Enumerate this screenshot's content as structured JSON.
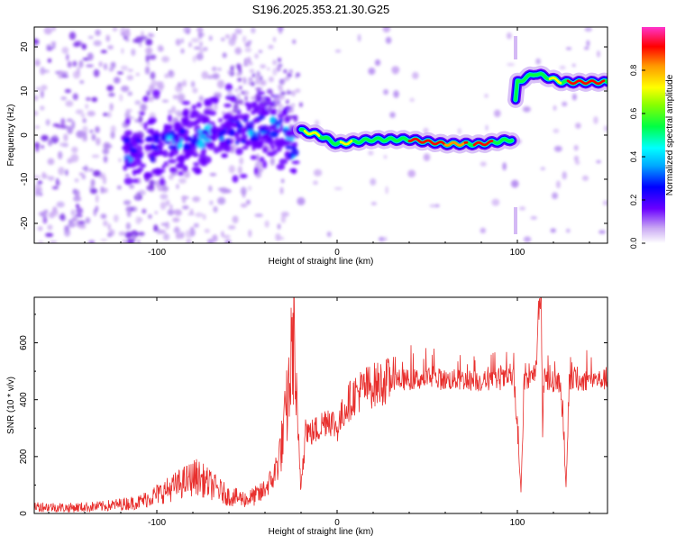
{
  "title": "S196.2025.353.21.30.G25",
  "chart_data": [
    {
      "type": "heatmap",
      "title": "S196.2025.353.21.30.G25",
      "xlabel": "Height of straight line (km)",
      "ylabel": "Frequency (Hz)",
      "xlim": [
        -168,
        150
      ],
      "ylim": [
        -24.5,
        24.5
      ],
      "xticks": [
        -100,
        0,
        100
      ],
      "yticks": [
        -20,
        -10,
        0,
        10,
        20
      ],
      "colorbar": {
        "label": "Normalized spectral amplitude",
        "range": [
          0,
          1
        ],
        "ticks": [
          0.0,
          0.2,
          0.4,
          0.6,
          0.8
        ]
      },
      "ridge": [
        {
          "x": -115,
          "y": -4
        },
        {
          "x": -100,
          "y": -3
        },
        {
          "x": -80,
          "y": -1
        },
        {
          "x": -60,
          "y": 1
        },
        {
          "x": -45,
          "y": 2
        },
        {
          "x": -30,
          "y": 1
        },
        {
          "x": -25,
          "y": -3
        },
        {
          "x": -20,
          "y": 1
        },
        {
          "x": -10,
          "y": 0
        },
        {
          "x": 0,
          "y": -2
        },
        {
          "x": 20,
          "y": -1
        },
        {
          "x": 40,
          "y": -1
        },
        {
          "x": 60,
          "y": -2
        },
        {
          "x": 80,
          "y": -2
        },
        {
          "x": 97,
          "y": -1
        },
        {
          "x": 100,
          "y": 12
        },
        {
          "x": 110,
          "y": 14
        },
        {
          "x": 125,
          "y": 12
        },
        {
          "x": 150,
          "y": 12
        }
      ]
    },
    {
      "type": "line",
      "xlabel": "Height of straight line (km)",
      "ylabel": "SNR (10 * v/v)",
      "xlim": [
        -168,
        150
      ],
      "ylim": [
        0,
        760
      ],
      "xticks": [
        -100,
        0,
        100
      ],
      "yticks": [
        0,
        200,
        400,
        600
      ],
      "series": [
        {
          "name": "SNR",
          "color": "#e8302e",
          "x": [
            -168,
            -150,
            -130,
            -110,
            -95,
            -85,
            -78,
            -70,
            -60,
            -50,
            -42,
            -35,
            -30,
            -27,
            -24,
            -22,
            -20,
            -18,
            -15,
            -10,
            -5,
            0,
            5,
            10,
            15,
            20,
            25,
            30,
            40,
            50,
            60,
            70,
            80,
            90,
            98,
            102,
            104,
            106,
            110,
            113,
            114,
            115,
            116,
            118,
            124,
            127,
            129,
            131,
            135,
            140,
            150
          ],
          "y": [
            25,
            20,
            25,
            40,
            80,
            110,
            130,
            100,
            60,
            50,
            70,
            130,
            260,
            420,
            640,
            280,
            90,
            310,
            280,
            300,
            340,
            300,
            380,
            420,
            440,
            450,
            460,
            470,
            470,
            475,
            470,
            470,
            465,
            470,
            475,
            80,
            470,
            460,
            500,
            770,
            260,
            500,
            470,
            465,
            460,
            90,
            460,
            470,
            465,
            470,
            470
          ]
        }
      ]
    }
  ],
  "colors": {
    "line": "#e8302e",
    "axis": "#000000",
    "background": "#ffffff"
  }
}
